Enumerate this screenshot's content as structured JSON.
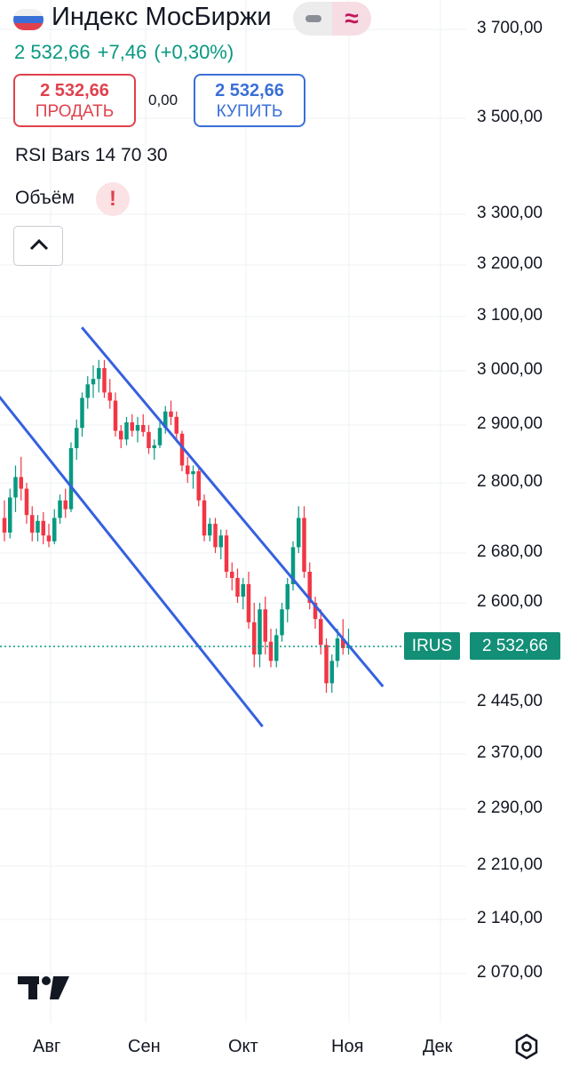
{
  "header": {
    "title": "Индекс МосБиржи",
    "price": "2 532,66",
    "change": "+7,46",
    "change_pct": "(+0,30%)"
  },
  "trade": {
    "sell_price": "2 532,66",
    "sell_label": "ПРОДАТЬ",
    "spread": "0,00",
    "buy_price": "2 532,66",
    "buy_label": "КУПИТЬ"
  },
  "indicators": {
    "rsi": "RSI Bars 14 70 30",
    "volume": "Объём",
    "warning_icon": "!"
  },
  "price_scale": [
    "3 700,00",
    "3 500,00",
    "3 300,00",
    "3 200,00",
    "3 100,00",
    "3 000,00",
    "2 900,00",
    "2 800,00",
    "2 680,00",
    "2 600,00",
    "2 445,00",
    "2 370,00",
    "2 290,00",
    "2 210,00",
    "2 140,00",
    "2 070,00"
  ],
  "time_scale": [
    "Авг",
    "Сен",
    "Окт",
    "Ноя",
    "Дек"
  ],
  "last_price_tag": {
    "symbol": "IRUS",
    "value": "2 532,66"
  },
  "colors": {
    "up": "#089981",
    "down": "#f23645",
    "channel": "#3560e0",
    "sell": "#e0424d",
    "buy": "#3a6fd8"
  },
  "icons": {
    "flag": "russia-flag-icon",
    "minus": "minus-icon",
    "wave": "approx-wave-icon",
    "collapse": "chevron-up-icon",
    "logo": "tradingview-logo-icon",
    "settings": "settings-hexagon-icon"
  },
  "chart_data": {
    "type": "candlestick",
    "price_range": [
      2020,
      3780
    ],
    "last_price": 2532.66,
    "candles": [
      [
        2740,
        2770,
        2700,
        2715
      ],
      [
        2715,
        2790,
        2705,
        2775
      ],
      [
        2775,
        2830,
        2750,
        2810
      ],
      [
        2810,
        2845,
        2770,
        2790
      ],
      [
        2790,
        2800,
        2730,
        2745
      ],
      [
        2745,
        2760,
        2700,
        2715
      ],
      [
        2715,
        2745,
        2700,
        2735
      ],
      [
        2735,
        2750,
        2695,
        2710
      ],
      [
        2710,
        2730,
        2690,
        2700
      ],
      [
        2700,
        2755,
        2695,
        2740
      ],
      [
        2740,
        2780,
        2730,
        2770
      ],
      [
        2770,
        2790,
        2740,
        2755
      ],
      [
        2755,
        2870,
        2750,
        2860
      ],
      [
        2860,
        2910,
        2840,
        2895
      ],
      [
        2895,
        2960,
        2880,
        2950
      ],
      [
        2950,
        2990,
        2930,
        2975
      ],
      [
        2975,
        3010,
        2950,
        2985
      ],
      [
        2985,
        3020,
        2960,
        3005
      ],
      [
        3005,
        3020,
        2950,
        2960
      ],
      [
        2960,
        2985,
        2930,
        2945
      ],
      [
        2945,
        2960,
        2880,
        2890
      ],
      [
        2890,
        2900,
        2860,
        2875
      ],
      [
        2875,
        2915,
        2865,
        2905
      ],
      [
        2905,
        2920,
        2880,
        2890
      ],
      [
        2890,
        2915,
        2870,
        2900
      ],
      [
        2900,
        2920,
        2880,
        2888
      ],
      [
        2888,
        2900,
        2850,
        2860
      ],
      [
        2860,
        2875,
        2840,
        2865
      ],
      [
        2865,
        2905,
        2860,
        2895
      ],
      [
        2895,
        2935,
        2885,
        2925
      ],
      [
        2925,
        2945,
        2900,
        2915
      ],
      [
        2915,
        2925,
        2870,
        2885
      ],
      [
        2885,
        2890,
        2820,
        2830
      ],
      [
        2830,
        2845,
        2800,
        2815
      ],
      [
        2815,
        2830,
        2790,
        2820
      ],
      [
        2820,
        2830,
        2760,
        2770
      ],
      [
        2770,
        2780,
        2700,
        2710
      ],
      [
        2710,
        2740,
        2700,
        2730
      ],
      [
        2730,
        2740,
        2680,
        2690
      ],
      [
        2690,
        2720,
        2670,
        2710
      ],
      [
        2710,
        2720,
        2640,
        2650
      ],
      [
        2650,
        2665,
        2620,
        2640
      ],
      [
        2640,
        2655,
        2600,
        2610
      ],
      [
        2610,
        2640,
        2590,
        2630
      ],
      [
        2630,
        2650,
        2560,
        2570
      ],
      [
        2570,
        2600,
        2500,
        2520
      ],
      [
        2520,
        2600,
        2500,
        2590
      ],
      [
        2590,
        2610,
        2520,
        2540
      ],
      [
        2540,
        2560,
        2500,
        2510
      ],
      [
        2510,
        2560,
        2500,
        2550
      ],
      [
        2550,
        2600,
        2540,
        2590
      ],
      [
        2590,
        2640,
        2570,
        2630
      ],
      [
        2630,
        2700,
        2620,
        2690
      ],
      [
        2690,
        2760,
        2680,
        2740
      ],
      [
        2740,
        2760,
        2640,
        2650
      ],
      [
        2650,
        2665,
        2590,
        2600
      ],
      [
        2600,
        2610,
        2560,
        2575
      ],
      [
        2575,
        2590,
        2520,
        2535
      ],
      [
        2535,
        2545,
        2460,
        2475
      ],
      [
        2475,
        2520,
        2460,
        2510
      ],
      [
        2510,
        2560,
        2500,
        2545
      ],
      [
        2545,
        2575,
        2520,
        2530
      ],
      [
        2530,
        2560,
        2520,
        2532.66
      ]
    ],
    "channel_lines": [
      {
        "x": [
          -3,
          30
        ],
        "y": [
          3000,
          2410
        ]
      },
      {
        "x": [
          9,
          44
        ],
        "y": [
          3080,
          2470
        ]
      }
    ]
  }
}
